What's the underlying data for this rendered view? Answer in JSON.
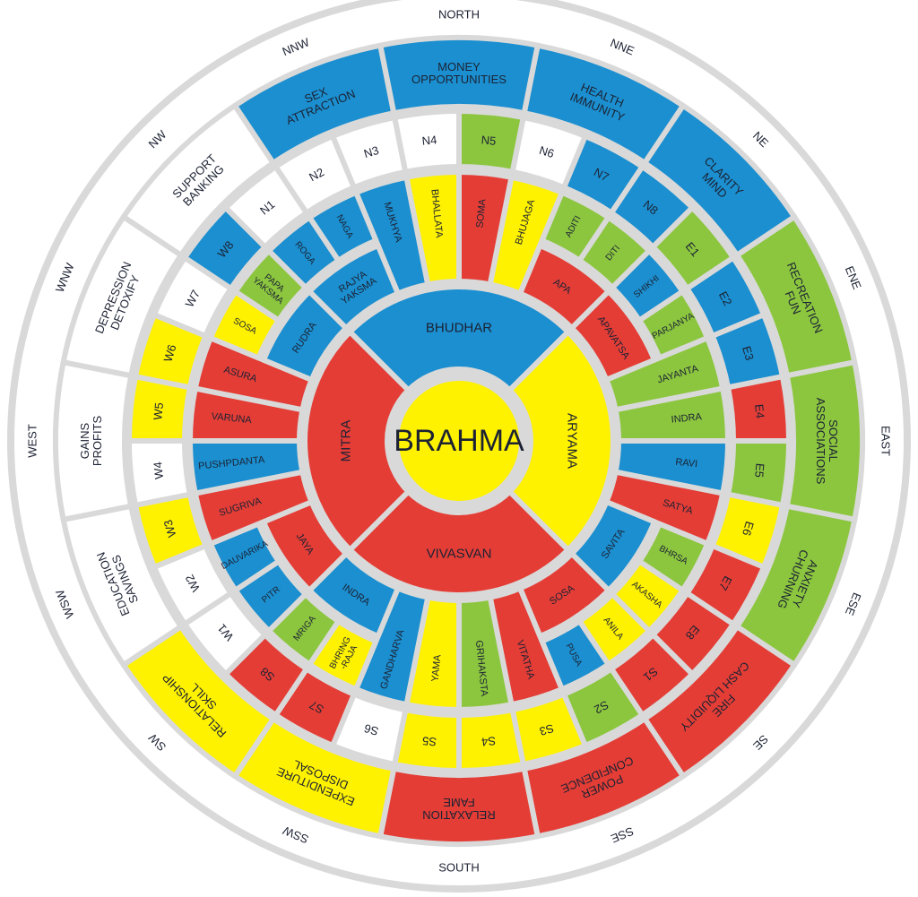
{
  "colors": {
    "blue": "#1b8fd0",
    "green": "#8cc63f",
    "red": "#e43d36",
    "yellow": "#fff200",
    "white": "#ffffff",
    "gap": "#d9d9d9"
  },
  "center": {
    "label": "BRAHMA",
    "color": "yellow"
  },
  "ring2": [
    {
      "label": "BHUDHAR",
      "color": "blue"
    },
    {
      "label": "ARYAMA",
      "color": "yellow"
    },
    {
      "label": "VIVASVAN",
      "color": "red"
    },
    {
      "label": "MITRA",
      "color": "red"
    }
  ],
  "ring3": [
    {
      "type": "side",
      "items": [
        {
          "label": "MUKHYA",
          "color": "blue"
        },
        {
          "label": "BHALLATA",
          "color": "yellow"
        },
        {
          "label": "SOMA",
          "color": "red"
        },
        {
          "label": "BHUJAGA",
          "color": "yellow"
        }
      ]
    },
    {
      "type": "corner",
      "outer": [
        {
          "label": "ADITI",
          "color": "green"
        },
        {
          "label": "DITI",
          "color": "green"
        },
        {
          "label": "SHIKHI",
          "color": "blue"
        },
        {
          "label": "PARJANYA",
          "color": "green"
        }
      ],
      "inner": [
        {
          "label": "APA",
          "color": "red"
        },
        {
          "label": "APAVATSA",
          "color": "red"
        }
      ]
    },
    {
      "type": "side",
      "items": [
        {
          "label": "JAYANTA",
          "color": "green"
        },
        {
          "label": "INDRA",
          "color": "green"
        },
        {
          "label": "RAVI",
          "color": "blue"
        },
        {
          "label": "SATYA",
          "color": "red"
        }
      ]
    },
    {
      "type": "corner",
      "outer": [
        {
          "label": "BHRSA",
          "color": "green"
        },
        {
          "label": "AKASHA",
          "color": "yellow"
        },
        {
          "label": "ANILA",
          "color": "yellow"
        },
        {
          "label": "PUSA",
          "color": "blue"
        }
      ],
      "inner": [
        {
          "label": "SAVITA",
          "color": "blue"
        },
        {
          "label": "SOSA",
          "color": "red"
        }
      ]
    },
    {
      "type": "side",
      "items": [
        {
          "label": "VITATHA",
          "color": "red"
        },
        {
          "label": "GRIHAKSTA",
          "color": "green"
        },
        {
          "label": "YAMA",
          "color": "yellow"
        },
        {
          "label": "GANDHARVA",
          "color": "blue"
        }
      ]
    },
    {
      "type": "corner",
      "outer": [
        {
          "lines": [
            "BHRING",
            "-RAJA"
          ],
          "color": "yellow"
        },
        {
          "label": "MRIGA",
          "color": "green"
        },
        {
          "label": "PITR",
          "color": "blue"
        },
        {
          "label": "DAUVARIKA",
          "color": "blue"
        }
      ],
      "inner": [
        {
          "label": "INDRA",
          "color": "blue"
        },
        {
          "label": "JAYA",
          "color": "red"
        }
      ]
    },
    {
      "type": "side",
      "items": [
        {
          "label": "SUGRIVA",
          "color": "red"
        },
        {
          "label": "PUSHPDANTA",
          "color": "blue"
        },
        {
          "label": "VARUNA",
          "color": "red"
        },
        {
          "label": "ASURA",
          "color": "red"
        }
      ]
    },
    {
      "type": "corner",
      "outer": [
        {
          "label": "SOSA",
          "color": "yellow"
        },
        {
          "lines": [
            "PAPA",
            "YAKSMA"
          ],
          "color": "green"
        },
        {
          "label": "ROGA",
          "color": "blue"
        },
        {
          "label": "NAGA",
          "color": "blue"
        }
      ],
      "inner": [
        {
          "label": "RUDRA",
          "color": "blue"
        },
        {
          "lines": [
            "RAJYA",
            "YAKSMA"
          ],
          "color": "blue"
        }
      ]
    }
  ],
  "ring4": [
    {
      "label": "N5",
      "color": "green"
    },
    {
      "label": "N6",
      "color": "white"
    },
    {
      "label": "N7",
      "color": "blue"
    },
    {
      "label": "N8",
      "color": "blue"
    },
    {
      "label": "E1",
      "color": "green"
    },
    {
      "label": "E2",
      "color": "blue"
    },
    {
      "label": "E3",
      "color": "blue"
    },
    {
      "label": "E4",
      "color": "red"
    },
    {
      "label": "E5",
      "color": "green"
    },
    {
      "label": "E6",
      "color": "yellow"
    },
    {
      "label": "E7",
      "color": "red"
    },
    {
      "label": "E8",
      "color": "red"
    },
    {
      "label": "S1",
      "color": "red"
    },
    {
      "label": "S2",
      "color": "green"
    },
    {
      "label": "S3",
      "color": "yellow"
    },
    {
      "label": "S4",
      "color": "yellow"
    },
    {
      "label": "S5",
      "color": "yellow"
    },
    {
      "label": "S6",
      "color": "white"
    },
    {
      "label": "S7",
      "color": "red"
    },
    {
      "label": "S8",
      "color": "red"
    },
    {
      "label": "W1",
      "color": "white"
    },
    {
      "label": "W2",
      "color": "white"
    },
    {
      "label": "W3",
      "color": "yellow"
    },
    {
      "label": "W4",
      "color": "white"
    },
    {
      "label": "W5",
      "color": "yellow"
    },
    {
      "label": "W6",
      "color": "yellow"
    },
    {
      "label": "W7",
      "color": "white"
    },
    {
      "label": "W8",
      "color": "blue"
    },
    {
      "label": "N1",
      "color": "white"
    },
    {
      "label": "N2",
      "color": "white"
    },
    {
      "label": "N3",
      "color": "white"
    },
    {
      "label": "N4",
      "color": "white"
    }
  ],
  "ring5": [
    {
      "lines": [
        "MONEY",
        "OPPORTUNITIES"
      ],
      "color": "blue"
    },
    {
      "lines": [
        "HEALTH",
        "IMMUNITY"
      ],
      "color": "blue"
    },
    {
      "lines": [
        "CLARITY",
        "MIND"
      ],
      "color": "blue"
    },
    {
      "lines": [
        "RECREATION",
        "FUN"
      ],
      "color": "green"
    },
    {
      "lines": [
        "SOCIAL",
        "ASSOCIATIONS"
      ],
      "color": "green"
    },
    {
      "lines": [
        "ANXIETY",
        "CHURNING"
      ],
      "color": "green"
    },
    {
      "lines": [
        "FIRE",
        "CASH LIQUIDITY"
      ],
      "color": "red"
    },
    {
      "lines": [
        "POWER",
        "CONFIDENCE"
      ],
      "color": "red"
    },
    {
      "lines": [
        "RELAXATION",
        "FAME"
      ],
      "color": "red"
    },
    {
      "lines": [
        "EXPENDITURE",
        "DISPOSAL"
      ],
      "color": "yellow"
    },
    {
      "lines": [
        "RELATIONSHIP",
        "SKILL"
      ],
      "color": "yellow"
    },
    {
      "lines": [
        "EDUCATION",
        "SAVINGS"
      ],
      "color": "white"
    },
    {
      "lines": [
        "GAINS",
        "PROFITS"
      ],
      "color": "white"
    },
    {
      "lines": [
        "DEPRESSION",
        "DETOXIFY"
      ],
      "color": "white"
    },
    {
      "lines": [
        "SUPPORT",
        "BANKING"
      ],
      "color": "white"
    },
    {
      "lines": [
        "SEX",
        "ATTRACTION"
      ],
      "color": "blue"
    }
  ],
  "directions": [
    "NORTH",
    "NNE",
    "NE",
    "ENE",
    "EAST",
    "ESE",
    "SE",
    "SSE",
    "SOUTH",
    "SSW",
    "SW",
    "WSW",
    "WEST",
    "WNW",
    "NW",
    "NNW"
  ]
}
